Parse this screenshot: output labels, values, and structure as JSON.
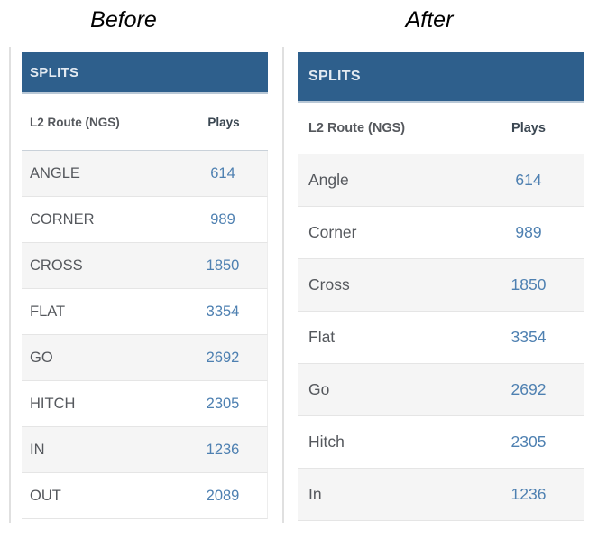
{
  "colors": {
    "header_bg": "#2e5f8c",
    "header_text": "#e4ebf2",
    "value_blue": "#4e80b1",
    "route_text": "#55585d",
    "column_header_text": "#3b4752",
    "alt_row_bg": "#f5f5f5",
    "pane_border": "#e0e0e0"
  },
  "before": {
    "label": "Before",
    "table_title": "SPLITS",
    "columns": {
      "route": "L2 Route (NGS)",
      "plays": "Plays"
    },
    "rows": [
      {
        "route": "ANGLE",
        "plays": "614"
      },
      {
        "route": "CORNER",
        "plays": "989"
      },
      {
        "route": "CROSS",
        "plays": "1850"
      },
      {
        "route": "FLAT",
        "plays": "3354"
      },
      {
        "route": "GO",
        "plays": "2692"
      },
      {
        "route": "HITCH",
        "plays": "2305"
      },
      {
        "route": "IN",
        "plays": "1236"
      },
      {
        "route": "OUT",
        "plays": "2089"
      }
    ]
  },
  "after": {
    "label": "After",
    "table_title": "SPLITS",
    "columns": {
      "route": "L2 Route (NGS)",
      "plays": "Plays"
    },
    "rows": [
      {
        "route": "Angle",
        "plays": "614"
      },
      {
        "route": "Corner",
        "plays": "989"
      },
      {
        "route": "Cross",
        "plays": "1850"
      },
      {
        "route": "Flat",
        "plays": "3354"
      },
      {
        "route": "Go",
        "plays": "2692"
      },
      {
        "route": "Hitch",
        "plays": "2305"
      },
      {
        "route": "In",
        "plays": "1236"
      }
    ]
  }
}
